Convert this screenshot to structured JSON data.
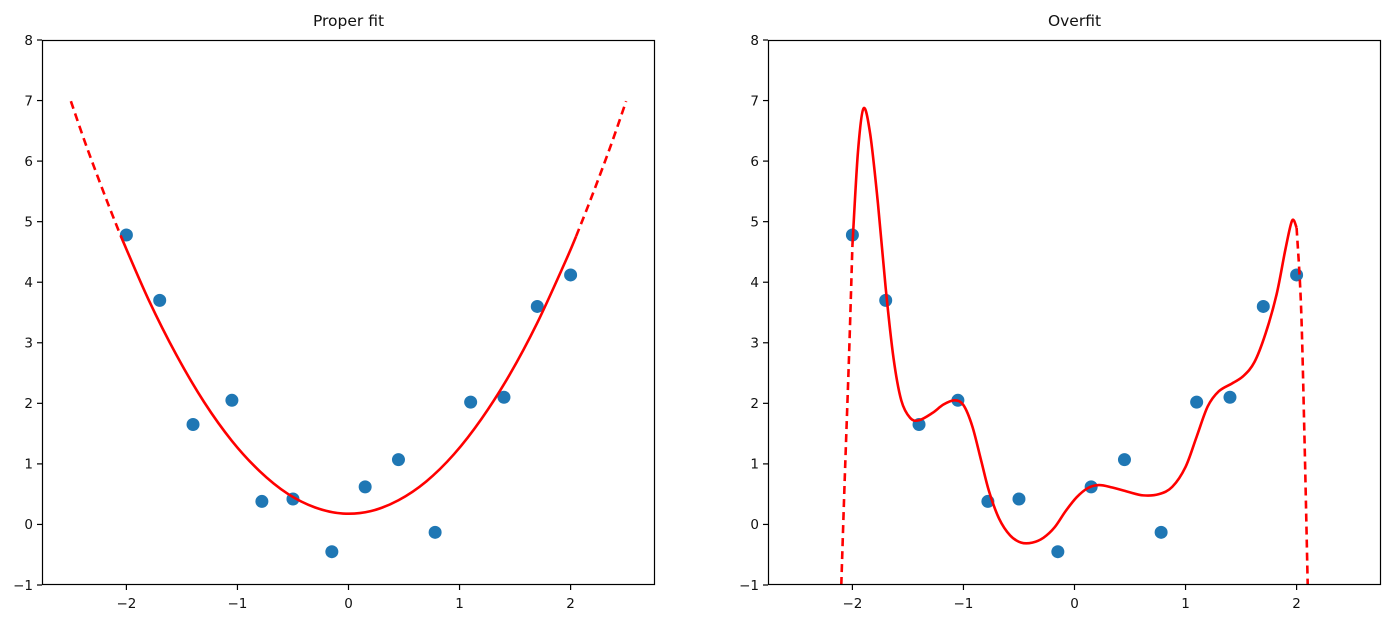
{
  "figure": {
    "background": "#ffffff",
    "axis_color": "#000000",
    "point_color": "#1f77b4",
    "line_color": "#ff0000"
  },
  "chart_data": [
    {
      "type": "scatter",
      "title": "Proper fit",
      "xlabel": "",
      "ylabel": "",
      "xlim": [
        -2.76,
        2.76
      ],
      "ylim": [
        -1,
        8
      ],
      "xticks": [
        -2,
        -1,
        0,
        1,
        2
      ],
      "yticks": [
        -1,
        0,
        1,
        2,
        3,
        4,
        5,
        6,
        7,
        8
      ],
      "grid": false,
      "legend": null,
      "point_color": "#1f77b4",
      "line_color": "#ff0000",
      "points": [
        [
          -2.0,
          4.78
        ],
        [
          -1.7,
          3.7
        ],
        [
          -1.4,
          1.65
        ],
        [
          -1.05,
          2.05
        ],
        [
          -0.78,
          0.38
        ],
        [
          -0.5,
          0.42
        ],
        [
          -0.15,
          -0.45
        ],
        [
          0.15,
          0.62
        ],
        [
          0.45,
          1.07
        ],
        [
          0.78,
          -0.13
        ],
        [
          1.1,
          2.02
        ],
        [
          1.4,
          2.1
        ],
        [
          1.7,
          3.6
        ],
        [
          2.0,
          4.12
        ]
      ],
      "series": [
        {
          "name": "proper-fit-curve-solid",
          "dashed": false,
          "points": [
            [
              -2.05,
              4.76
            ],
            [
              -1.8,
              3.71
            ],
            [
              -1.55,
              2.8
            ],
            [
              -1.3,
              2.02
            ],
            [
              -1.05,
              1.38
            ],
            [
              -0.8,
              0.88
            ],
            [
              -0.55,
              0.51
            ],
            [
              -0.3,
              0.28
            ],
            [
              -0.05,
              0.18
            ],
            [
              0.2,
              0.22
            ],
            [
              0.45,
              0.4
            ],
            [
              0.7,
              0.71
            ],
            [
              0.95,
              1.16
            ],
            [
              1.2,
              1.75
            ],
            [
              1.45,
              2.47
            ],
            [
              1.7,
              3.33
            ],
            [
              1.95,
              4.33
            ],
            [
              2.05,
              4.76
            ]
          ]
        },
        {
          "name": "proper-fit-extrapolation-left",
          "dashed": true,
          "points": [
            [
              -2.5,
              6.99
            ],
            [
              -2.38,
              6.35
            ],
            [
              -2.27,
              5.8
            ],
            [
              -2.16,
              5.27
            ],
            [
              -2.05,
              4.76
            ]
          ]
        },
        {
          "name": "proper-fit-extrapolation-right",
          "dashed": true,
          "points": [
            [
              2.05,
              4.76
            ],
            [
              2.16,
              5.27
            ],
            [
              2.27,
              5.8
            ],
            [
              2.38,
              6.35
            ],
            [
              2.5,
              6.99
            ]
          ]
        }
      ]
    },
    {
      "type": "scatter",
      "title": "Overfit",
      "xlabel": "",
      "ylabel": "",
      "xlim": [
        -2.76,
        2.76
      ],
      "ylim": [
        -1,
        8
      ],
      "xticks": [
        -2,
        -1,
        0,
        1,
        2
      ],
      "yticks": [
        -1,
        0,
        1,
        2,
        3,
        4,
        5,
        6,
        7,
        8
      ],
      "grid": false,
      "legend": null,
      "point_color": "#1f77b4",
      "line_color": "#ff0000",
      "points": [
        [
          -2.0,
          4.78
        ],
        [
          -1.7,
          3.7
        ],
        [
          -1.4,
          1.65
        ],
        [
          -1.05,
          2.05
        ],
        [
          -0.78,
          0.38
        ],
        [
          -0.5,
          0.42
        ],
        [
          -0.15,
          -0.45
        ],
        [
          0.15,
          0.62
        ],
        [
          0.45,
          1.07
        ],
        [
          0.78,
          -0.13
        ],
        [
          1.1,
          2.02
        ],
        [
          1.4,
          2.1
        ],
        [
          1.7,
          3.6
        ],
        [
          2.0,
          4.12
        ]
      ],
      "series": [
        {
          "name": "overfit-curve-solid",
          "dashed": false,
          "points": [
            [
              -2.0,
              4.6
            ],
            [
              -1.95,
              6.15
            ],
            [
              -1.9,
              6.87
            ],
            [
              -1.84,
              6.45
            ],
            [
              -1.77,
              5.3
            ],
            [
              -1.7,
              3.9
            ],
            [
              -1.63,
              2.75
            ],
            [
              -1.56,
              2.05
            ],
            [
              -1.48,
              1.76
            ],
            [
              -1.4,
              1.72
            ],
            [
              -1.28,
              1.84
            ],
            [
              -1.18,
              1.98
            ],
            [
              -1.08,
              2.05
            ],
            [
              -1.0,
              1.97
            ],
            [
              -0.92,
              1.62
            ],
            [
              -0.84,
              1.05
            ],
            [
              -0.77,
              0.55
            ],
            [
              -0.68,
              0.1
            ],
            [
              -0.58,
              -0.18
            ],
            [
              -0.48,
              -0.3
            ],
            [
              -0.38,
              -0.3
            ],
            [
              -0.28,
              -0.22
            ],
            [
              -0.18,
              -0.05
            ],
            [
              -0.08,
              0.22
            ],
            [
              0.02,
              0.45
            ],
            [
              0.12,
              0.6
            ],
            [
              0.22,
              0.65
            ],
            [
              0.34,
              0.61
            ],
            [
              0.48,
              0.54
            ],
            [
              0.62,
              0.48
            ],
            [
              0.76,
              0.5
            ],
            [
              0.88,
              0.62
            ],
            [
              1.0,
              0.95
            ],
            [
              1.1,
              1.45
            ],
            [
              1.2,
              1.95
            ],
            [
              1.3,
              2.2
            ],
            [
              1.42,
              2.33
            ],
            [
              1.52,
              2.45
            ],
            [
              1.62,
              2.68
            ],
            [
              1.72,
              3.15
            ],
            [
              1.82,
              3.8
            ],
            [
              1.9,
              4.55
            ],
            [
              1.96,
              5.02
            ],
            [
              2.0,
              4.9
            ]
          ]
        },
        {
          "name": "overfit-extrapolation-left",
          "dashed": true,
          "points": [
            [
              -2.1,
              -1.0
            ],
            [
              -2.07,
              0.7
            ],
            [
              -2.03,
              2.8
            ],
            [
              -2.0,
              4.6
            ]
          ]
        },
        {
          "name": "overfit-extrapolation-right",
          "dashed": true,
          "points": [
            [
              2.0,
              4.9
            ],
            [
              2.04,
              3.6
            ],
            [
              2.07,
              1.5
            ],
            [
              2.1,
              -1.0
            ]
          ]
        }
      ]
    }
  ]
}
